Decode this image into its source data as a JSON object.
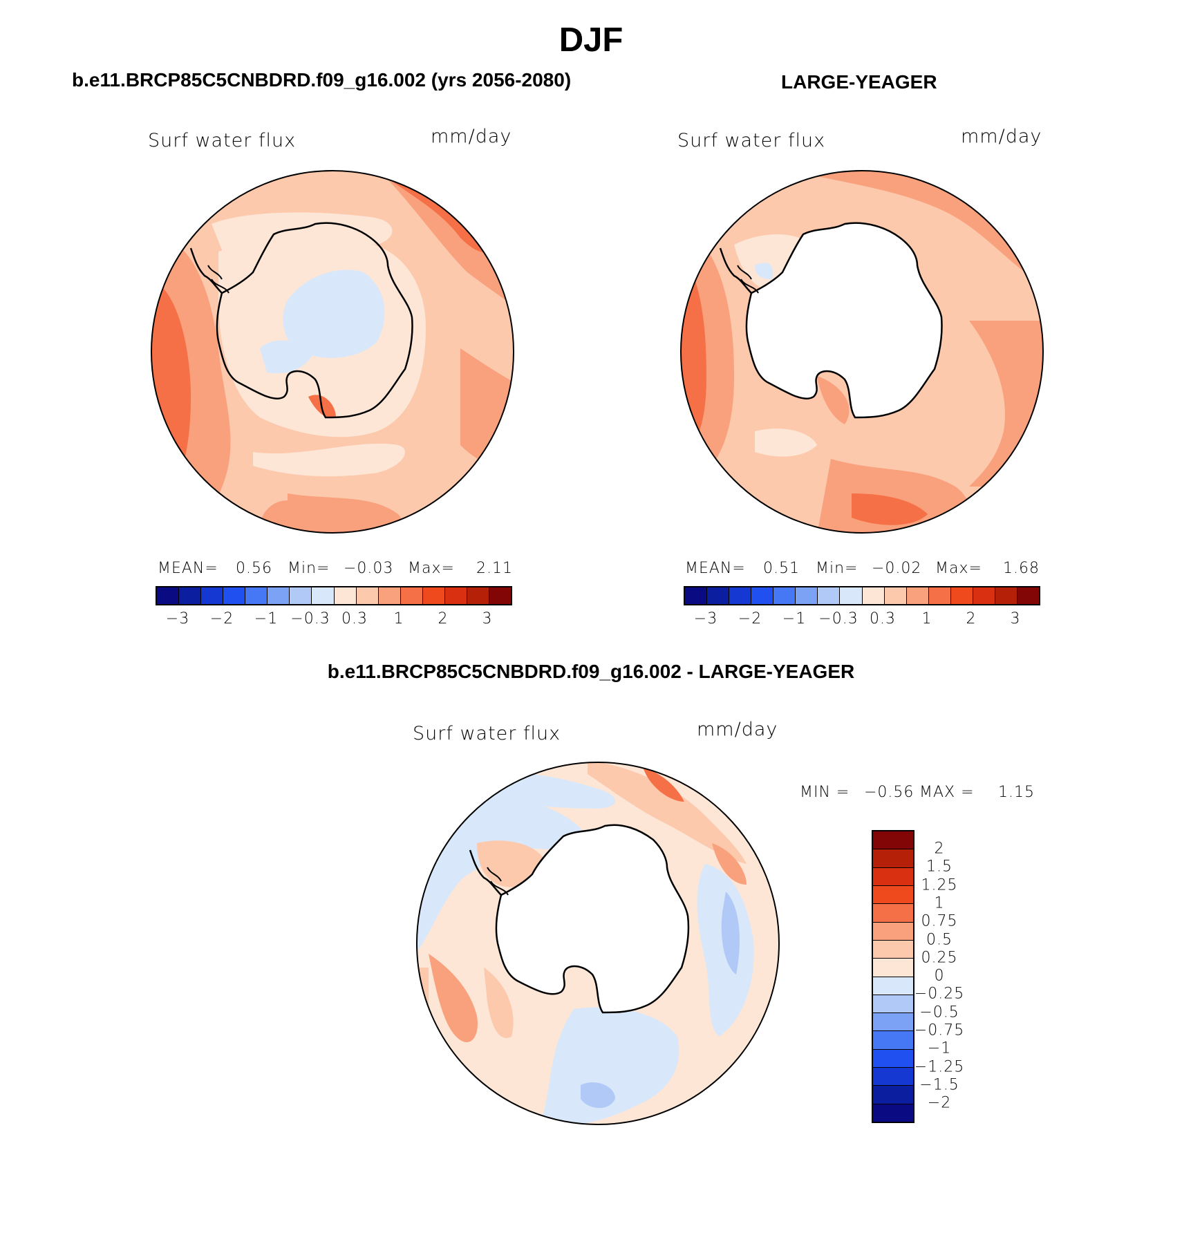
{
  "figure": {
    "season": "DJF",
    "diff_title": "b.e11.BRCP85C5CNBDRD.f09_g16.002 - LARGE-YEAGER"
  },
  "panels": [
    {
      "title": "b.e11.BRCP85C5CNBDRD.f09_g16.002 (yrs 2056-2080)",
      "variable": "Surf  water  flux",
      "units": "mm/day",
      "mean_label": "MEAN=",
      "mean_value": "0.56",
      "min_label": "Min=",
      "min_value": "−0.03",
      "max_label": "Max=",
      "max_value": "2.11"
    },
    {
      "title": "LARGE-YEAGER",
      "variable": "Surf  water  flux",
      "units": "mm/day",
      "mean_label": "MEAN=",
      "mean_value": "0.51",
      "min_label": "Min=",
      "min_value": "−0.02",
      "max_label": "Max=",
      "max_value": "1.68"
    }
  ],
  "diff_panel": {
    "variable": "Surf  water  flux",
    "units": "mm/day",
    "min_label": "MIN =",
    "min_value": "−0.56",
    "max_label": "MAX =",
    "max_value": "1.15"
  },
  "colorbar_top": {
    "colors": [
      "#0a0a82",
      "#0c1ea0",
      "#1537d2",
      "#2150f0",
      "#4678f5",
      "#7ba2f5",
      "#b1c9f7",
      "#d8e8fa",
      "#fde6d6",
      "#fcc9ad",
      "#f9a07c",
      "#f57046",
      "#ee4a1e",
      "#d83010",
      "#b52008",
      "#820606"
    ],
    "tick_labels": [
      "−3",
      "−2",
      "−1",
      "−0.3",
      "0.3",
      "1",
      "2",
      "3"
    ]
  },
  "colorbar_diff": {
    "colors_top_to_bottom": [
      "#820606",
      "#b52008",
      "#d83010",
      "#ee4a1e",
      "#f57046",
      "#f9a07c",
      "#fcc9ad",
      "#fde6d6",
      "#d8e8fa",
      "#b1c9f7",
      "#7ba2f5",
      "#4678f5",
      "#2150f0",
      "#1537d2",
      "#0c1ea0",
      "#0a0a82"
    ],
    "tick_labels": [
      "2",
      "1.5",
      "1.25",
      "1",
      "0.75",
      "0.5",
      "0.25",
      "0",
      "−0.25",
      "−0.5",
      "−0.75",
      "−1",
      "−1.25",
      "−1.5",
      "−2"
    ]
  }
}
